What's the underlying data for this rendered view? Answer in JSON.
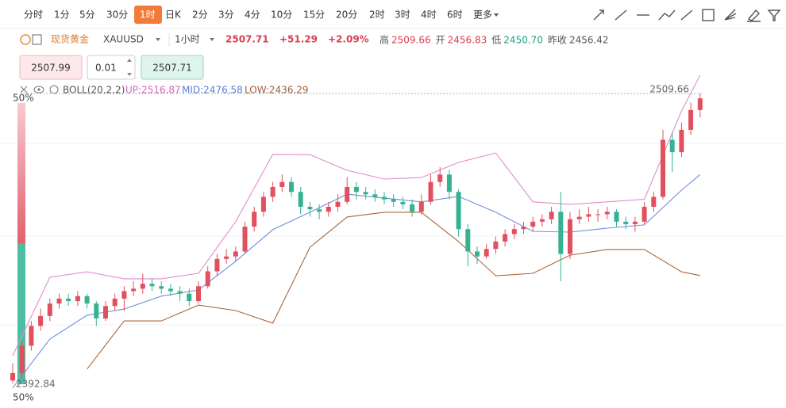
{
  "toolbar": {
    "tabs": [
      "分时",
      "1分",
      "5分",
      "30分",
      "1时",
      "日K",
      "2分",
      "3分",
      "4分",
      "10分",
      "15分",
      "20分",
      "2时",
      "3时",
      "4时",
      "6时",
      "更多"
    ],
    "active": 4
  },
  "header": {
    "name": "现货黄金",
    "symbol": "XAUUSD",
    "interval": "1小时",
    "price": "2507.71",
    "change": "+51.29",
    "change_pct": "+2.09%",
    "stats": [
      {
        "label": "高",
        "value": "2509.66",
        "color": "#d9404f"
      },
      {
        "label": "开",
        "value": "2456.83",
        "color": "#d9404f"
      },
      {
        "label": "低",
        "value": "2450.70",
        "color": "#1fa383"
      },
      {
        "label": "昨收",
        "value": "2456.42",
        "color": "#555555"
      }
    ]
  },
  "order": {
    "sell": "2507.99",
    "lots": "0.01",
    "buy": "2507.71"
  },
  "indicator": {
    "name": "BOLL(20,2,2)",
    "up": "UP:2516.87",
    "mid": "MID:2476.58",
    "low": "LOW:2436.29"
  },
  "sentiment": {
    "values": [
      50,
      50
    ],
    "value_labels": [
      "50%",
      "50%"
    ],
    "colors": [
      "#e2606f",
      "#4cbfa3"
    ]
  },
  "chart_data": {
    "type": "candlestick",
    "up_color": "#e0505e",
    "down_color": "#36b293",
    "ylim": [
      2384.2,
      2520.2
    ],
    "high_marker": 2509.66,
    "low_marker": 2392.84,
    "ohlc": [
      [
        2394,
        2401,
        2392.84,
        2397
      ],
      [
        2397,
        2410,
        2395,
        2408
      ],
      [
        2408,
        2418,
        2406,
        2416
      ],
      [
        2416,
        2423,
        2414,
        2420
      ],
      [
        2420,
        2427,
        2418,
        2425
      ],
      [
        2425,
        2429,
        2423,
        2427
      ],
      [
        2427,
        2429,
        2424,
        2426
      ],
      [
        2426,
        2430,
        2424,
        2428
      ],
      [
        2428,
        2429,
        2423,
        2425
      ],
      [
        2425,
        2426,
        2416,
        2419
      ],
      [
        2419,
        2426,
        2418,
        2424
      ],
      [
        2424,
        2429,
        2422,
        2427
      ],
      [
        2427,
        2432,
        2422,
        2430
      ],
      [
        2430,
        2434,
        2428,
        2431
      ],
      [
        2431,
        2437,
        2429,
        2433
      ],
      [
        2433,
        2435,
        2430,
        2432
      ],
      [
        2432,
        2434,
        2429,
        2431
      ],
      [
        2431,
        2433,
        2428,
        2430
      ],
      [
        2430,
        2432,
        2426,
        2429
      ],
      [
        2429,
        2431,
        2424,
        2426
      ],
      [
        2426,
        2434,
        2425,
        2432
      ],
      [
        2432,
        2440,
        2431,
        2438
      ],
      [
        2438,
        2445,
        2436,
        2443
      ],
      [
        2443,
        2447,
        2441,
        2444
      ],
      [
        2444,
        2448,
        2442,
        2446
      ],
      [
        2446,
        2458,
        2445,
        2456
      ],
      [
        2456,
        2464,
        2454,
        2462
      ],
      [
        2462,
        2470,
        2460,
        2468
      ],
      [
        2468,
        2474,
        2466,
        2472
      ],
      [
        2472,
        2477,
        2470,
        2474
      ],
      [
        2474,
        2476,
        2468,
        2470
      ],
      [
        2470,
        2472,
        2461,
        2464
      ],
      [
        2464,
        2466,
        2460,
        2463
      ],
      [
        2463,
        2465,
        2459,
        2462
      ],
      [
        2462,
        2466,
        2460,
        2464
      ],
      [
        2464,
        2469,
        2462,
        2466
      ],
      [
        2466,
        2476,
        2465,
        2472
      ],
      [
        2472,
        2474,
        2467,
        2470
      ],
      [
        2470,
        2472,
        2467,
        2469
      ],
      [
        2469,
        2471,
        2466,
        2468
      ],
      [
        2468,
        2470,
        2465,
        2467
      ],
      [
        2467,
        2469,
        2464,
        2466
      ],
      [
        2466,
        2468,
        2463,
        2465
      ],
      [
        2465,
        2467,
        2460,
        2462
      ],
      [
        2462,
        2469,
        2461,
        2466
      ],
      [
        2466,
        2477,
        2465,
        2474
      ],
      [
        2474,
        2480,
        2472,
        2477
      ],
      [
        2477,
        2479,
        2467,
        2470
      ],
      [
        2470,
        2471,
        2452,
        2455
      ],
      [
        2455,
        2457,
        2440,
        2446
      ],
      [
        2446,
        2448,
        2441,
        2444
      ],
      [
        2444,
        2449,
        2443,
        2447
      ],
      [
        2447,
        2452,
        2445,
        2450
      ],
      [
        2450,
        2455,
        2448,
        2453
      ],
      [
        2453,
        2457,
        2451,
        2455
      ],
      [
        2455,
        2458,
        2453,
        2456
      ],
      [
        2456,
        2460,
        2454,
        2458
      ],
      [
        2458,
        2461,
        2456,
        2459
      ],
      [
        2459,
        2464,
        2457,
        2462
      ],
      [
        2462,
        2470,
        2434,
        2445
      ],
      [
        2445,
        2462,
        2443,
        2459
      ],
      [
        2459,
        2463,
        2457,
        2460
      ],
      [
        2460,
        2464,
        2458,
        2461
      ],
      [
        2461,
        2463,
        2458,
        2461
      ],
      [
        2461,
        2464,
        2459,
        2462
      ],
      [
        2462,
        2463,
        2456,
        2458
      ],
      [
        2458,
        2460,
        2455,
        2457
      ],
      [
        2457,
        2460,
        2454,
        2458
      ],
      [
        2458,
        2466,
        2457,
        2464
      ],
      [
        2464,
        2470,
        2462,
        2468
      ],
      [
        2468,
        2495,
        2467,
        2491
      ],
      [
        2491,
        2494,
        2478,
        2486
      ],
      [
        2486,
        2498,
        2484,
        2495
      ],
      [
        2495,
        2506,
        2493,
        2503
      ],
      [
        2503,
        2509.66,
        2500,
        2507.71
      ]
    ],
    "boll": {
      "x": [
        0,
        4,
        8,
        12,
        16,
        20,
        24,
        28,
        32,
        36,
        40,
        44,
        48,
        52,
        56,
        60,
        64,
        68,
        72,
        74
      ],
      "up": [
        2404,
        2435.6,
        2437.8,
        2435,
        2435,
        2437.2,
        2458,
        2485.1,
        2485,
        2478.7,
        2475.2,
        2475.8,
        2481.9,
        2485.7,
        2466,
        2465,
        2466,
        2467,
        2502.6,
        2517
      ],
      "mid": [
        2391,
        2410.7,
        2420.3,
        2422.8,
        2428,
        2430.5,
        2442,
        2454.8,
        2461.8,
        2469.1,
        2467.5,
        2466,
        2468.2,
        2461.8,
        2454.1,
        2453.8,
        2455.4,
        2456.7,
        2470.7,
        2477
      ],
      "low": [
        null,
        null,
        2398.6,
        2418,
        2418,
        2424.4,
        2422.2,
        2417.1,
        2447.7,
        2459.9,
        2461.8,
        2461.8,
        2450,
        2436.2,
        2437.2,
        2444.5,
        2446.8,
        2446.8,
        2437.8,
        2436.3
      ],
      "colors": {
        "up": "#e18ccb",
        "mid": "#6f8fdc",
        "low": "#a8673a"
      }
    }
  }
}
